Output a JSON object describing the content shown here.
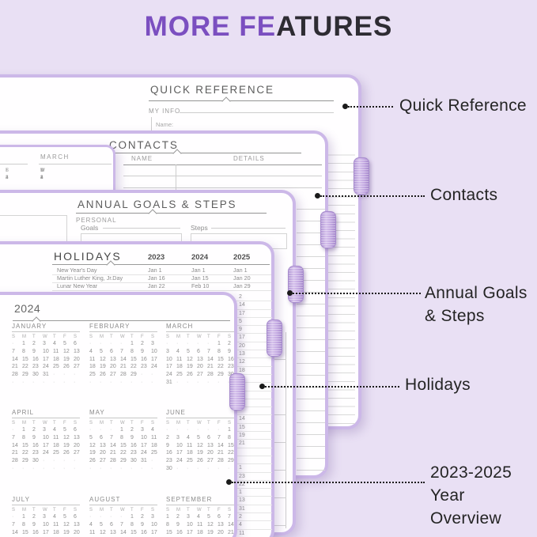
{
  "title": {
    "highlight": "MORE FE",
    "rest": "ATURES"
  },
  "colors": {
    "accent_purple": "#7b4fc0",
    "background": "#e9e0f4",
    "card_border": "#ccb8e8"
  },
  "labels": {
    "quick_reference": "Quick Reference",
    "contacts": "Contacts",
    "annual_goals_1": "Annual Goals",
    "annual_goals_2": "& Steps",
    "holidays": "Holidays",
    "overview_1": "2023-2025",
    "overview_2": "Year",
    "overview_3": "Overview"
  },
  "pages": {
    "quick_reference": {
      "title": "QUICK REFERENCE",
      "section": "MY INFO",
      "name_label": "Name:"
    },
    "contacts": {
      "title": "CONTACTS",
      "col_name": "NAME",
      "col_details": "DETAILS"
    },
    "annual_goals": {
      "title": "ANNUAL GOALS & STEPS",
      "section": "PERSONAL",
      "goals_label": "Goals",
      "steps_label": "Steps"
    },
    "holidays": {
      "title": "HOLIDAYS",
      "years": [
        "2023",
        "2024",
        "2025"
      ],
      "rows": [
        {
          "name": "New Year's Day",
          "dates": [
            "Jan 1",
            "Jan 1",
            "Jan 1"
          ]
        },
        {
          "name": "Martin Luther King, Jr.Day",
          "dates": [
            "Jan 16",
            "Jan 15",
            "Jan 20"
          ]
        },
        {
          "name": "Lunar New Year",
          "dates": [
            "Jan 22",
            "Feb 10",
            "Jan 29"
          ]
        }
      ],
      "strip_dates": [
        "2",
        "14",
        "17",
        "5",
        "9",
        "17",
        "20",
        "13",
        "12",
        "18",
        "20",
        "",
        "",
        "",
        "",
        "14",
        "15",
        "19",
        "21",
        "",
        "",
        "1",
        "23",
        "22",
        "1",
        "13",
        "31",
        "2",
        "4",
        "11",
        "27"
      ]
    },
    "year2023_fragment": {
      "month": "MARCH",
      "day_letters": [
        "S",
        "M",
        "T",
        "W",
        "T",
        "F",
        "S"
      ],
      "first_row": [
        "·",
        "·",
        "·",
        "1",
        "2",
        "3",
        "4"
      ],
      "left_partial_letters": [
        "T",
        "F",
        "S"
      ],
      "left_partial_row": [
        "2",
        "3",
        "4"
      ]
    },
    "year2024": {
      "title": "2024",
      "day_letters": [
        "S",
        "M",
        "T",
        "W",
        "T",
        "F",
        "S"
      ],
      "months": [
        {
          "name": "JANUARY",
          "start": 1,
          "days": 31
        },
        {
          "name": "FEBRUARY",
          "start": 4,
          "days": 29
        },
        {
          "name": "MARCH",
          "start": 5,
          "days": 31
        },
        {
          "name": "APRIL",
          "start": 1,
          "days": 30
        },
        {
          "name": "MAY",
          "start": 3,
          "days": 31
        },
        {
          "name": "JUNE",
          "start": 6,
          "days": 30
        },
        {
          "name": "JULY",
          "start": 1,
          "days": 31
        },
        {
          "name": "AUGUST",
          "start": 4,
          "days": 31
        },
        {
          "name": "SEPTEMBER",
          "start": 0,
          "days": 30
        }
      ]
    }
  }
}
